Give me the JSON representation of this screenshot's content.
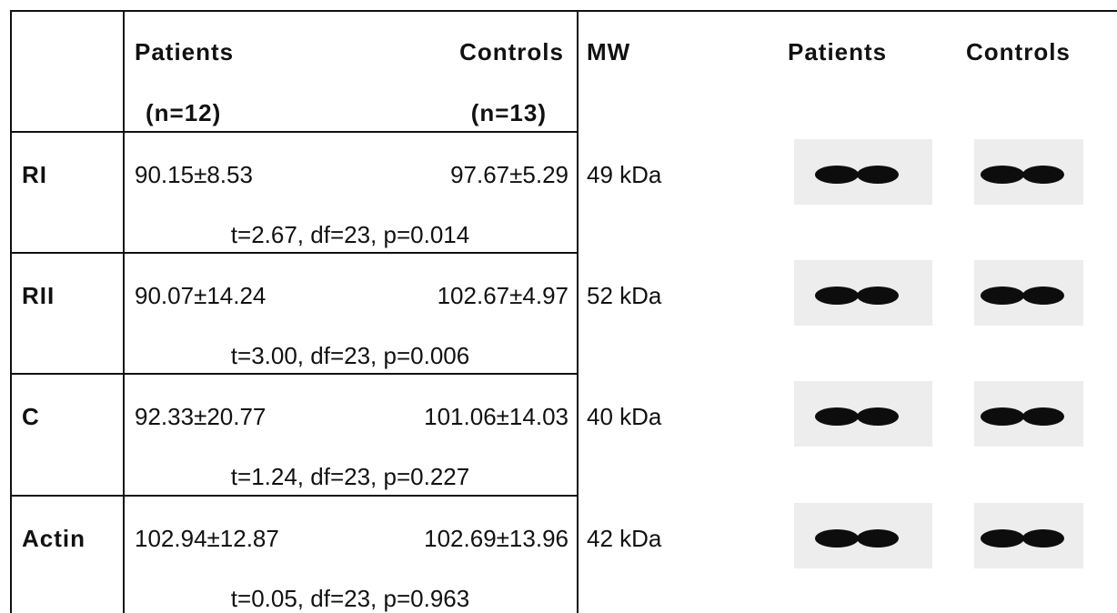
{
  "table": {
    "header": [
      "Patients",
      "Controls",
      "MW",
      "Patients",
      "Controls"
    ],
    "subheader": [
      "(n=12)",
      "(n=13)"
    ],
    "rows": [
      {
        "label": "RI",
        "patients": "90.15±8.53",
        "controls": "97.67±5.29",
        "stats": "t=2.67, df=23, p=0.014",
        "mw": "49 kDa"
      },
      {
        "label": "RII",
        "patients": "90.07±14.24",
        "controls": "102.67±4.97",
        "stats": "t=3.00, df=23, p=0.006",
        "mw": "52 kDa"
      },
      {
        "label": "C",
        "patients": "92.33±20.77",
        "controls": "101.06±14.03",
        "stats": "t=1.24, df=23, p=0.227",
        "mw": "40 kDa"
      },
      {
        "label": "Actin",
        "patients": "102.94±12.87",
        "controls": "102.69±13.96",
        "stats": "t=0.05, df=23, p=0.963",
        "mw": "42 kDa"
      }
    ]
  }
}
